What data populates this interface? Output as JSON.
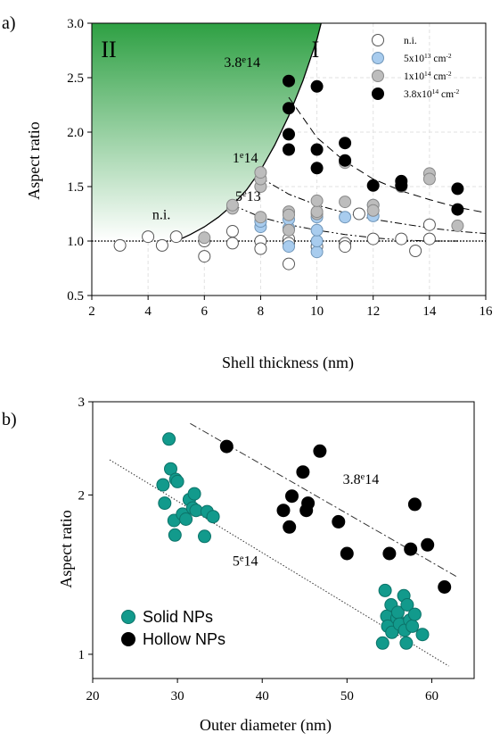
{
  "chart_data": [
    {
      "panel": "a)",
      "type": "scatter",
      "xlabel": "Shell thickness (nm)",
      "ylabel": "Aspect ratio",
      "xlim": [
        2,
        16
      ],
      "ylim": [
        0.5,
        3.0
      ],
      "xticks": [
        "2",
        "4",
        "6",
        "8",
        "10",
        "12",
        "14",
        "16"
      ],
      "yticks": [
        "0.5",
        "1.0",
        "1.5",
        "2.0",
        "2.5",
        "3.0"
      ],
      "grid": true,
      "legend_placement": "top-right",
      "regions": [
        {
          "label": "II",
          "color": "#2ea043"
        },
        {
          "label": "I"
        }
      ],
      "boundary_points": [
        [
          5.0,
          1.0
        ],
        [
          5.5,
          1.06
        ],
        [
          6.0,
          1.13
        ],
        [
          6.5,
          1.22
        ],
        [
          7.0,
          1.33
        ],
        [
          7.5,
          1.47
        ],
        [
          8.0,
          1.65
        ],
        [
          8.5,
          1.88
        ],
        [
          9.0,
          2.15
        ],
        [
          9.5,
          2.47
        ],
        [
          10.0,
          2.85
        ],
        [
          10.15,
          3.0
        ]
      ],
      "annotations": [
        {
          "text": "3.8",
          "sup": "e",
          "tail": "14",
          "x": 6.7,
          "y": 2.6
        },
        {
          "text": "1",
          "sup": "e",
          "tail": "14",
          "x": 7.0,
          "y": 1.72
        },
        {
          "text": "5",
          "sup": "e",
          "tail": "13",
          "x": 7.1,
          "y": 1.37
        },
        {
          "text": "n.i.",
          "x": 4.15,
          "y": 1.2
        }
      ],
      "reference_line": {
        "y": 1.0,
        "style": "dotted"
      },
      "fit_curves": [
        {
          "name_ref": "3.8e14",
          "points": [
            [
              9.0,
              2.32
            ],
            [
              10.0,
              1.95
            ],
            [
              11.0,
              1.73
            ],
            [
              12.0,
              1.57
            ],
            [
              13.0,
              1.46
            ],
            [
              14.0,
              1.38
            ],
            [
              15.0,
              1.31
            ],
            [
              16.0,
              1.26
            ]
          ],
          "style": "dashed"
        },
        {
          "name_ref": "1e14",
          "points": [
            [
              8.0,
              1.58
            ],
            [
              9.0,
              1.43
            ],
            [
              10.0,
              1.33
            ],
            [
              11.0,
              1.26
            ],
            [
              12.0,
              1.2
            ],
            [
              13.0,
              1.16
            ],
            [
              14.0,
              1.12
            ],
            [
              15.0,
              1.09
            ],
            [
              16.0,
              1.07
            ]
          ],
          "style": "dashdot"
        },
        {
          "name_ref": "5e13",
          "points": [
            [
              7.0,
              1.33
            ],
            [
              8.0,
              1.22
            ],
            [
              9.0,
              1.15
            ],
            [
              10.0,
              1.1
            ],
            [
              11.0,
              1.06
            ],
            [
              12.0,
              1.03
            ],
            [
              13.0,
              1.01
            ],
            [
              14.0,
              1.0
            ],
            [
              15.0,
              1.0
            ]
          ],
          "style": "dashdotdot"
        }
      ],
      "series": [
        {
          "name": "n.i.",
          "color": "#ffffff",
          "edge": "#555555",
          "points": [
            [
              3.0,
              0.96
            ],
            [
              4.0,
              1.04
            ],
            [
              4.5,
              0.96
            ],
            [
              5.0,
              1.04
            ],
            [
              6.0,
              0.86
            ],
            [
              6.0,
              1.0
            ],
            [
              7.0,
              1.09
            ],
            [
              7.0,
              0.98
            ],
            [
              8.0,
              1.0
            ],
            [
              8.0,
              0.93
            ],
            [
              9.0,
              0.79
            ],
            [
              9.0,
              1.02
            ],
            [
              9.0,
              0.98
            ],
            [
              10.0,
              0.95
            ],
            [
              11.0,
              0.98
            ],
            [
              11.0,
              0.95
            ],
            [
              11.5,
              1.25
            ],
            [
              12.0,
              1.02
            ],
            [
              13.0,
              1.02
            ],
            [
              13.5,
              0.91
            ],
            [
              14.0,
              1.15
            ],
            [
              14.0,
              1.02
            ]
          ]
        },
        {
          "name": "5x10",
          "sup": "13",
          "unit": " cm",
          "unit_sup": "-2",
          "color": "#a8ccee",
          "edge": "#6f95b8",
          "points": [
            [
              8.0,
              1.13
            ],
            [
              8.0,
              1.18
            ],
            [
              9.0,
              0.95
            ],
            [
              9.0,
              1.12
            ],
            [
              9.0,
              1.2
            ],
            [
              10.0,
              0.9
            ],
            [
              10.0,
              1.0
            ],
            [
              10.0,
              1.1
            ],
            [
              10.0,
              1.22
            ],
            [
              11.0,
              1.22
            ],
            [
              12.0,
              1.33
            ],
            [
              12.0,
              1.23
            ]
          ]
        },
        {
          "name": "1x10",
          "sup": "14",
          "unit": " cm",
          "unit_sup": "-2",
          "color": "#bdbdbd",
          "edge": "#888888",
          "points": [
            [
              6.0,
              1.03
            ],
            [
              7.0,
              1.3
            ],
            [
              7.0,
              1.33
            ],
            [
              8.0,
              1.22
            ],
            [
              8.0,
              1.5
            ],
            [
              8.0,
              1.57
            ],
            [
              8.0,
              1.63
            ],
            [
              9.0,
              1.27
            ],
            [
              9.0,
              1.24
            ],
            [
              9.0,
              1.1
            ],
            [
              10.0,
              1.25
            ],
            [
              10.0,
              1.27
            ],
            [
              10.0,
              1.37
            ],
            [
              11.0,
              1.36
            ],
            [
              11.0,
              1.72
            ],
            [
              12.0,
              1.33
            ],
            [
              12.0,
              1.28
            ],
            [
              13.0,
              1.5
            ],
            [
              14.0,
              1.62
            ],
            [
              14.0,
              1.57
            ],
            [
              15.0,
              1.14
            ]
          ]
        },
        {
          "name": "3.8x10",
          "sup": "14",
          "unit": " cm",
          "unit_sup": "-2",
          "color": "#000000",
          "edge": "#000000",
          "points": [
            [
              9.0,
              2.47
            ],
            [
              9.0,
              2.22
            ],
            [
              9.0,
              1.98
            ],
            [
              9.0,
              1.84
            ],
            [
              10.0,
              2.42
            ],
            [
              10.0,
              1.84
            ],
            [
              10.0,
              1.67
            ],
            [
              11.0,
              1.9
            ],
            [
              11.0,
              1.74
            ],
            [
              12.0,
              1.51
            ],
            [
              13.0,
              1.55
            ],
            [
              13.0,
              1.51
            ],
            [
              15.0,
              1.48
            ],
            [
              15.0,
              1.29
            ]
          ]
        }
      ]
    },
    {
      "panel": "b)",
      "type": "scatter",
      "xlabel": "Outer diameter (nm)",
      "ylabel": "Aspect ratio",
      "xlim": [
        20,
        65
      ],
      "ylim": [
        0.9,
        3.0
      ],
      "yscale": "log",
      "xticks": [
        "20",
        "30",
        "40",
        "50",
        "60"
      ],
      "yticks": [
        "1",
        "2",
        "3"
      ],
      "legend_placement": "bottom-left",
      "annotations": [
        {
          "text": "3.8",
          "sup": "e",
          "tail": "14",
          "x": 49.5,
          "y": 2.1
        },
        {
          "text": "5",
          "sup": "e",
          "tail": "14",
          "x": 36.5,
          "y": 1.47
        }
      ],
      "trend_lines": [
        {
          "name_ref": "3.8e14",
          "points": [
            [
              31.5,
              2.73
            ],
            [
              63.0,
              1.4
            ]
          ],
          "style": "dashdot"
        },
        {
          "name_ref": "5e14",
          "points": [
            [
              22.0,
              2.33
            ],
            [
              62.0,
              0.95
            ]
          ],
          "style": "dotted"
        }
      ],
      "series": [
        {
          "name": "Solid NPs",
          "color": "#129a8c",
          "edge": "#0c7369",
          "points": [
            [
              28.3,
              2.09
            ],
            [
              28.5,
              1.93
            ],
            [
              29.0,
              2.55
            ],
            [
              29.2,
              2.24
            ],
            [
              29.6,
              1.79
            ],
            [
              29.7,
              1.68
            ],
            [
              29.8,
              2.14
            ],
            [
              30.0,
              2.12
            ],
            [
              30.6,
              1.84
            ],
            [
              31.0,
              1.8
            ],
            [
              31.4,
              1.96
            ],
            [
              31.8,
              1.89
            ],
            [
              32.0,
              2.01
            ],
            [
              32.2,
              1.87
            ],
            [
              33.2,
              1.67
            ],
            [
              33.5,
              1.86
            ],
            [
              34.2,
              1.82
            ],
            [
              54.2,
              1.05
            ],
            [
              54.5,
              1.32
            ],
            [
              54.7,
              1.18
            ],
            [
              54.8,
              1.13
            ],
            [
              55.2,
              1.24
            ],
            [
              55.3,
              1.1
            ],
            [
              55.9,
              1.17
            ],
            [
              56.0,
              1.2
            ],
            [
              56.2,
              1.14
            ],
            [
              56.7,
              1.29
            ],
            [
              56.8,
              1.11
            ],
            [
              57.0,
              1.05
            ],
            [
              57.1,
              1.24
            ],
            [
              57.4,
              1.16
            ],
            [
              57.7,
              1.13
            ],
            [
              58.0,
              1.19
            ],
            [
              58.9,
              1.09
            ]
          ]
        },
        {
          "name": "Hollow NPs",
          "color": "#000000",
          "edge": "#000000",
          "points": [
            [
              35.8,
              2.47
            ],
            [
              42.5,
              1.87
            ],
            [
              43.2,
              1.74
            ],
            [
              43.5,
              1.99
            ],
            [
              44.8,
              2.21
            ],
            [
              45.2,
              1.87
            ],
            [
              45.4,
              1.93
            ],
            [
              46.8,
              2.42
            ],
            [
              49.0,
              1.78
            ],
            [
              50.0,
              1.55
            ],
            [
              55.0,
              1.55
            ],
            [
              57.5,
              1.58
            ],
            [
              58.0,
              1.92
            ],
            [
              59.5,
              1.61
            ],
            [
              61.5,
              1.34
            ]
          ]
        }
      ]
    }
  ]
}
